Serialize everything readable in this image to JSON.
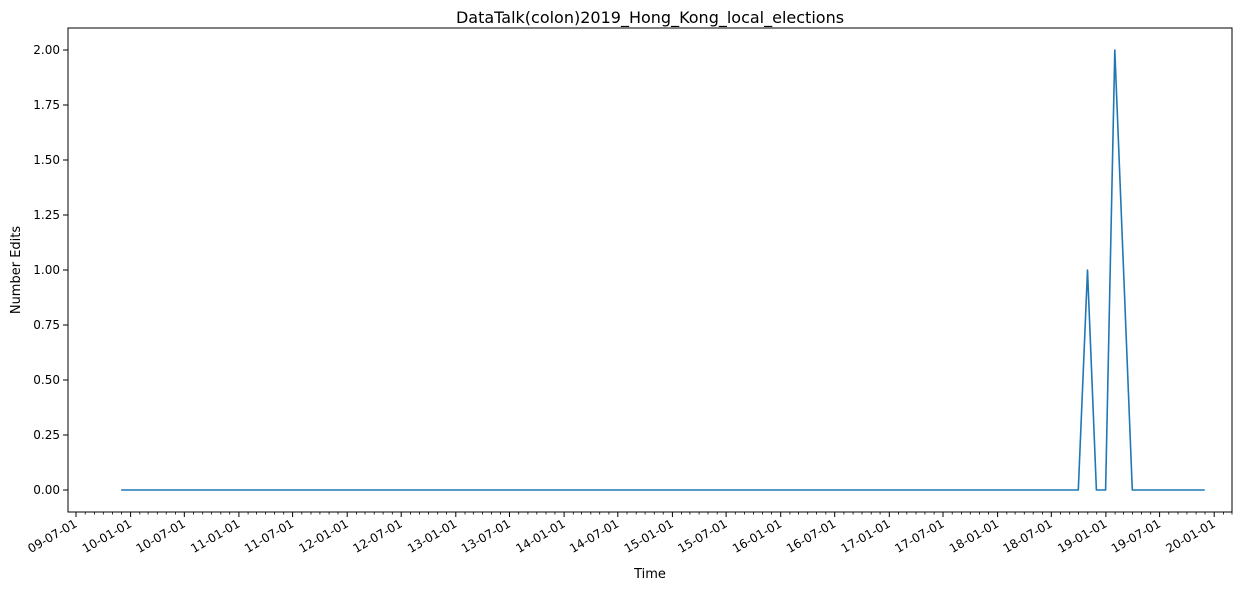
{
  "chart_data": {
    "type": "line",
    "title": "DataTalk(colon)2019_Hong_Kong_local_elections",
    "xlabel": "Time",
    "ylabel": "Number Edits",
    "x_axis_type": "date",
    "xlim": [
      "2009-06-04",
      "2020-03-01"
    ],
    "ylim": [
      -0.1,
      2.1
    ],
    "x_tick_values": [
      "2009-07-01",
      "2010-01-01",
      "2010-07-01",
      "2011-01-01",
      "2011-07-01",
      "2012-01-01",
      "2012-07-01",
      "2013-01-01",
      "2013-07-01",
      "2014-01-01",
      "2014-07-01",
      "2015-01-01",
      "2015-07-01",
      "2016-01-01",
      "2016-07-01",
      "2017-01-01",
      "2017-07-01",
      "2018-01-01",
      "2018-07-01",
      "2019-01-01",
      "2019-07-01",
      "2020-01-01"
    ],
    "x_tick_labels": [
      "09-07-01",
      "10-01-01",
      "10-07-01",
      "11-01-01",
      "11-07-01",
      "12-01-01",
      "12-07-01",
      "13-01-01",
      "13-07-01",
      "14-01-01",
      "14-07-01",
      "15-01-01",
      "15-07-01",
      "16-01-01",
      "16-07-01",
      "17-01-01",
      "17-07-01",
      "18-01-01",
      "18-07-01",
      "19-01-01",
      "19-07-01",
      "20-01-01"
    ],
    "y_tick_values": [
      0.0,
      0.25,
      0.5,
      0.75,
      1.0,
      1.25,
      1.5,
      1.75,
      2.0
    ],
    "y_tick_labels": [
      "0.00",
      "0.25",
      "0.50",
      "0.75",
      "1.00",
      "1.25",
      "1.50",
      "1.75",
      "2.00"
    ],
    "series": [
      {
        "color": "#1f77b4",
        "points": [
          {
            "x": "2009-11-30",
            "y": 0
          },
          {
            "x": "2018-09-30",
            "y": 0
          },
          {
            "x": "2018-10-31",
            "y": 1
          },
          {
            "x": "2018-11-30",
            "y": 0
          },
          {
            "x": "2018-12-31",
            "y": 0
          },
          {
            "x": "2019-01-31",
            "y": 2
          },
          {
            "x": "2019-03-31",
            "y": 0
          },
          {
            "x": "2019-11-30",
            "y": 0
          }
        ]
      }
    ],
    "grid": false,
    "legend": "none"
  }
}
